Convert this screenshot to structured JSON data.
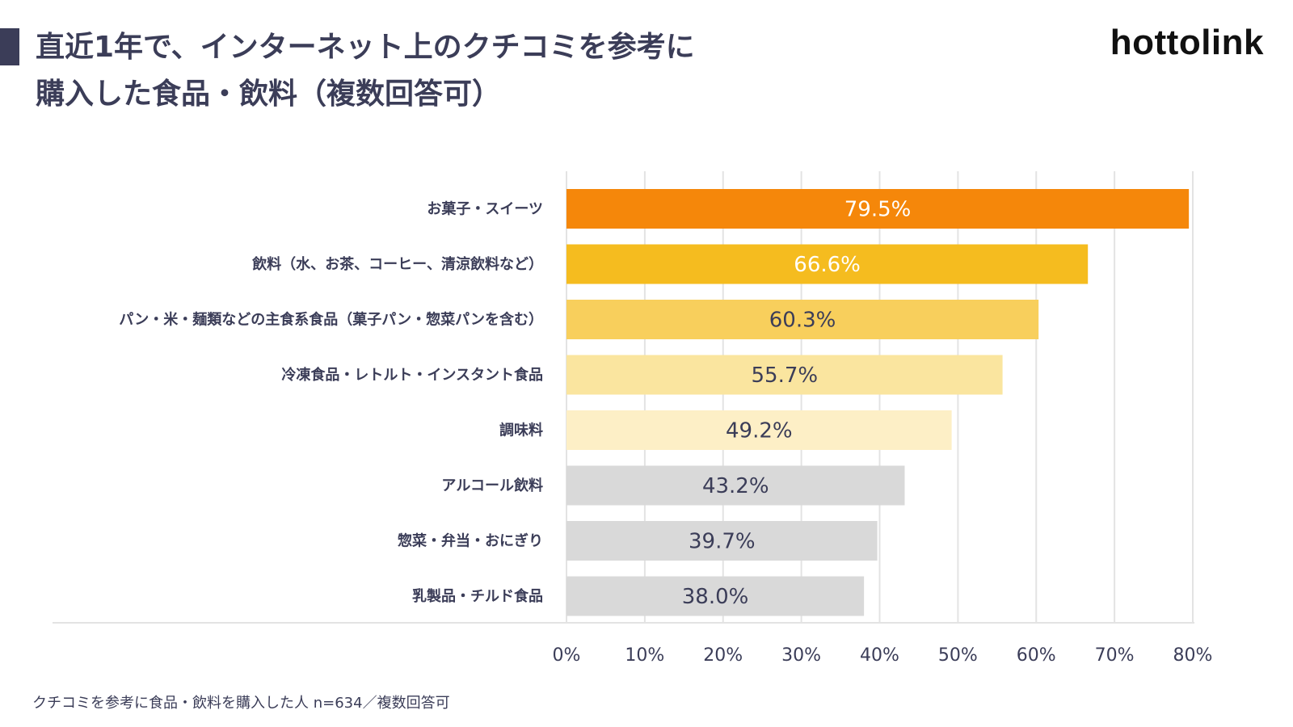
{
  "header": {
    "title_line1": "直近1年で、インターネット上のクチコミを参考に",
    "title_line2": "購入した食品・飲料（複数回答可）",
    "logo": "hottolink"
  },
  "footnote": "クチコミを参考に食品・飲料を購入した人 n=634／複数回答可",
  "chart_data": {
    "type": "bar",
    "orientation": "horizontal",
    "categories": [
      "お菓子・スイーツ",
      "飲料（水、お茶、コーヒー、清涼飲料など）",
      "パン・米・麺類などの主食系食品（菓子パン・惣菜パンを含む）",
      "冷凍食品・レトルト・インスタント食品",
      "調味料",
      "アルコール飲料",
      "惣菜・弁当・おにぎり",
      "乳製品・チルド食品"
    ],
    "values": [
      79.5,
      66.6,
      60.3,
      55.7,
      49.2,
      43.2,
      39.7,
      38.0
    ],
    "value_labels": [
      "79.5%",
      "66.6%",
      "60.3%",
      "55.7%",
      "49.2%",
      "43.2%",
      "39.7%",
      "38.0%"
    ],
    "bar_colors": [
      "#f5870a",
      "#f5bc1f",
      "#f8cf5c",
      "#fae59f",
      "#fdefc6",
      "#d9d9d9",
      "#d9d9d9",
      "#d9d9d9"
    ],
    "label_colors": [
      "#ffffff",
      "#ffffff",
      "#3b3d58",
      "#3b3d58",
      "#3b3d58",
      "#3b3d58",
      "#3b3d58",
      "#3b3d58"
    ],
    "xlim": [
      0,
      80
    ],
    "xticks": [
      0,
      10,
      20,
      30,
      40,
      50,
      60,
      70,
      80
    ],
    "xtick_labels": [
      "0%",
      "10%",
      "20%",
      "30%",
      "40%",
      "50%",
      "60%",
      "70%",
      "80%"
    ],
    "grid": true
  }
}
